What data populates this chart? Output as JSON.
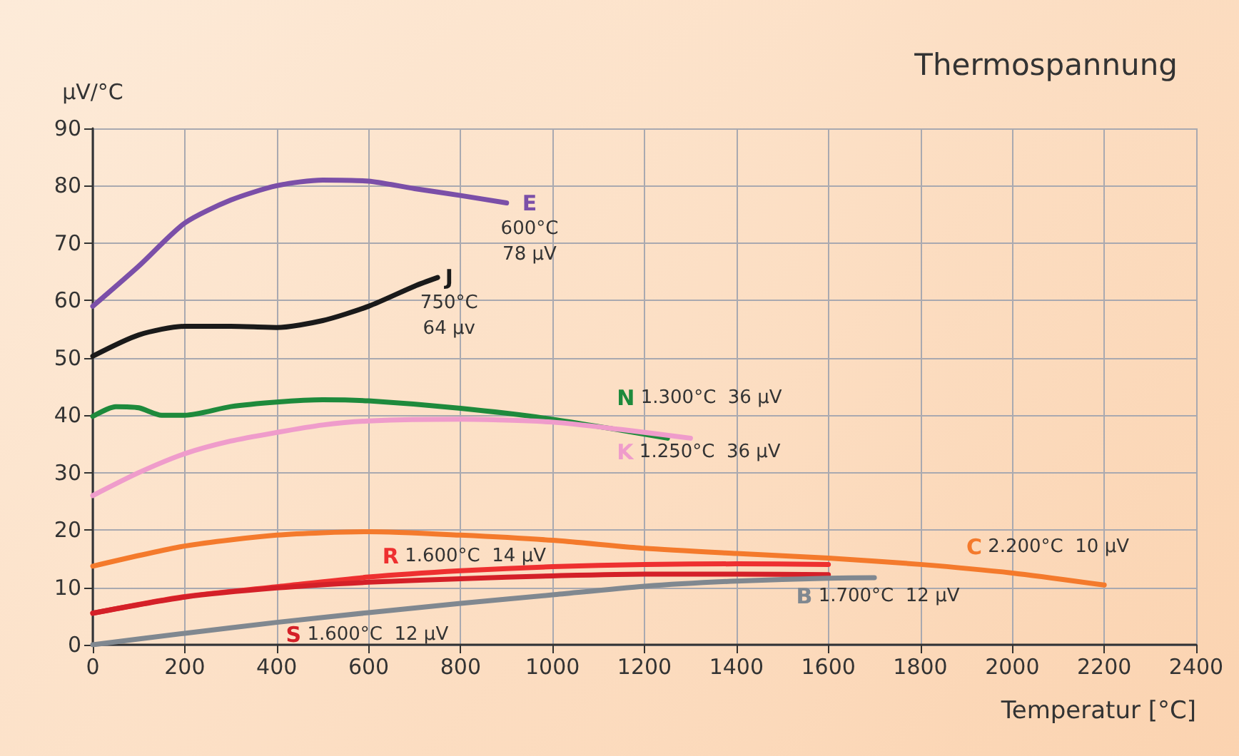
{
  "chart_data": {
    "type": "line",
    "title": "Thermospannung",
    "xlabel": "Temperatur [°C]",
    "ylabel": "µV/°C",
    "xlim": [
      0,
      2400
    ],
    "xticks": [
      0,
      200,
      400,
      600,
      800,
      1000,
      1200,
      1400,
      1600,
      1800,
      2000,
      2200,
      2400
    ],
    "ylim": [
      0,
      90
    ],
    "yticks": [
      0,
      10,
      20,
      30,
      40,
      50,
      60,
      70,
      80,
      90
    ],
    "grid": true,
    "legend": false,
    "marker": "none",
    "line_style": "solid",
    "series": [
      {
        "name": "E",
        "color": "#7b4fa8",
        "x": [
          0,
          100,
          200,
          300,
          400,
          500,
          600,
          700,
          800,
          900
        ],
        "values": [
          59,
          66,
          73.5,
          77.5,
          80,
          81,
          80.8,
          79.5,
          78.3,
          77
        ]
      },
      {
        "name": "J",
        "color": "#1a1a1a",
        "x": [
          0,
          100,
          200,
          300,
          400,
          500,
          600,
          700,
          750
        ],
        "values": [
          50.3,
          54,
          55.5,
          55.5,
          55.3,
          56.5,
          59,
          62.5,
          64
        ]
      },
      {
        "name": "N",
        "color": "#1e8a3c",
        "x": [
          0,
          50,
          100,
          150,
          200,
          300,
          400,
          500,
          600,
          800,
          1000,
          1250
        ],
        "values": [
          39.8,
          41.5,
          41.3,
          40,
          40,
          41.5,
          42.3,
          42.7,
          42.5,
          41.2,
          39.3,
          36
        ]
      },
      {
        "name": "K",
        "color": "#ef9ccb",
        "x": [
          0,
          100,
          200,
          300,
          400,
          500,
          600,
          800,
          1000,
          1150,
          1300
        ],
        "values": [
          26,
          30,
          33.3,
          35.5,
          37,
          38.3,
          39,
          39.3,
          38.8,
          37.5,
          36
        ]
      },
      {
        "name": "R",
        "color": "#ee3030",
        "x": [
          0,
          200,
          400,
          600,
          800,
          1000,
          1200,
          1400,
          1600
        ],
        "values": [
          5.5,
          8.4,
          10.1,
          11.8,
          12.9,
          13.6,
          14,
          14.1,
          14
        ]
      },
      {
        "name": "S",
        "color": "#d42028",
        "x": [
          0,
          200,
          400,
          600,
          800,
          1000,
          1200,
          1400,
          1600
        ],
        "values": [
          5.5,
          8.3,
          9.9,
          10.9,
          11.5,
          12,
          12.3,
          12.3,
          12.2
        ]
      },
      {
        "name": "B",
        "color": "#808890",
        "x": [
          0,
          200,
          400,
          600,
          800,
          1000,
          1200,
          1400,
          1600,
          1700
        ],
        "values": [
          0,
          2,
          3.9,
          5.6,
          7.2,
          8.7,
          10.2,
          11.1,
          11.6,
          11.7
        ]
      },
      {
        "name": "C",
        "color": "#f47a2c",
        "x": [
          0,
          200,
          400,
          600,
          800,
          1000,
          1200,
          1400,
          1600,
          1800,
          2000,
          2200
        ],
        "values": [
          13.7,
          17.2,
          19.1,
          19.7,
          19.1,
          18.2,
          16.8,
          15.9,
          15.1,
          14,
          12.5,
          10.4
        ]
      }
    ],
    "annotations": [
      "600°C\n78 µV",
      "750°C\n64 µv",
      "1.300°C  36 µV",
      "1.250°C  36 µV",
      "1.600°C  14 µV",
      "1.600°C  12 µV",
      "1.700°C  12 µV",
      "2.200°C  10 µV"
    ]
  }
}
